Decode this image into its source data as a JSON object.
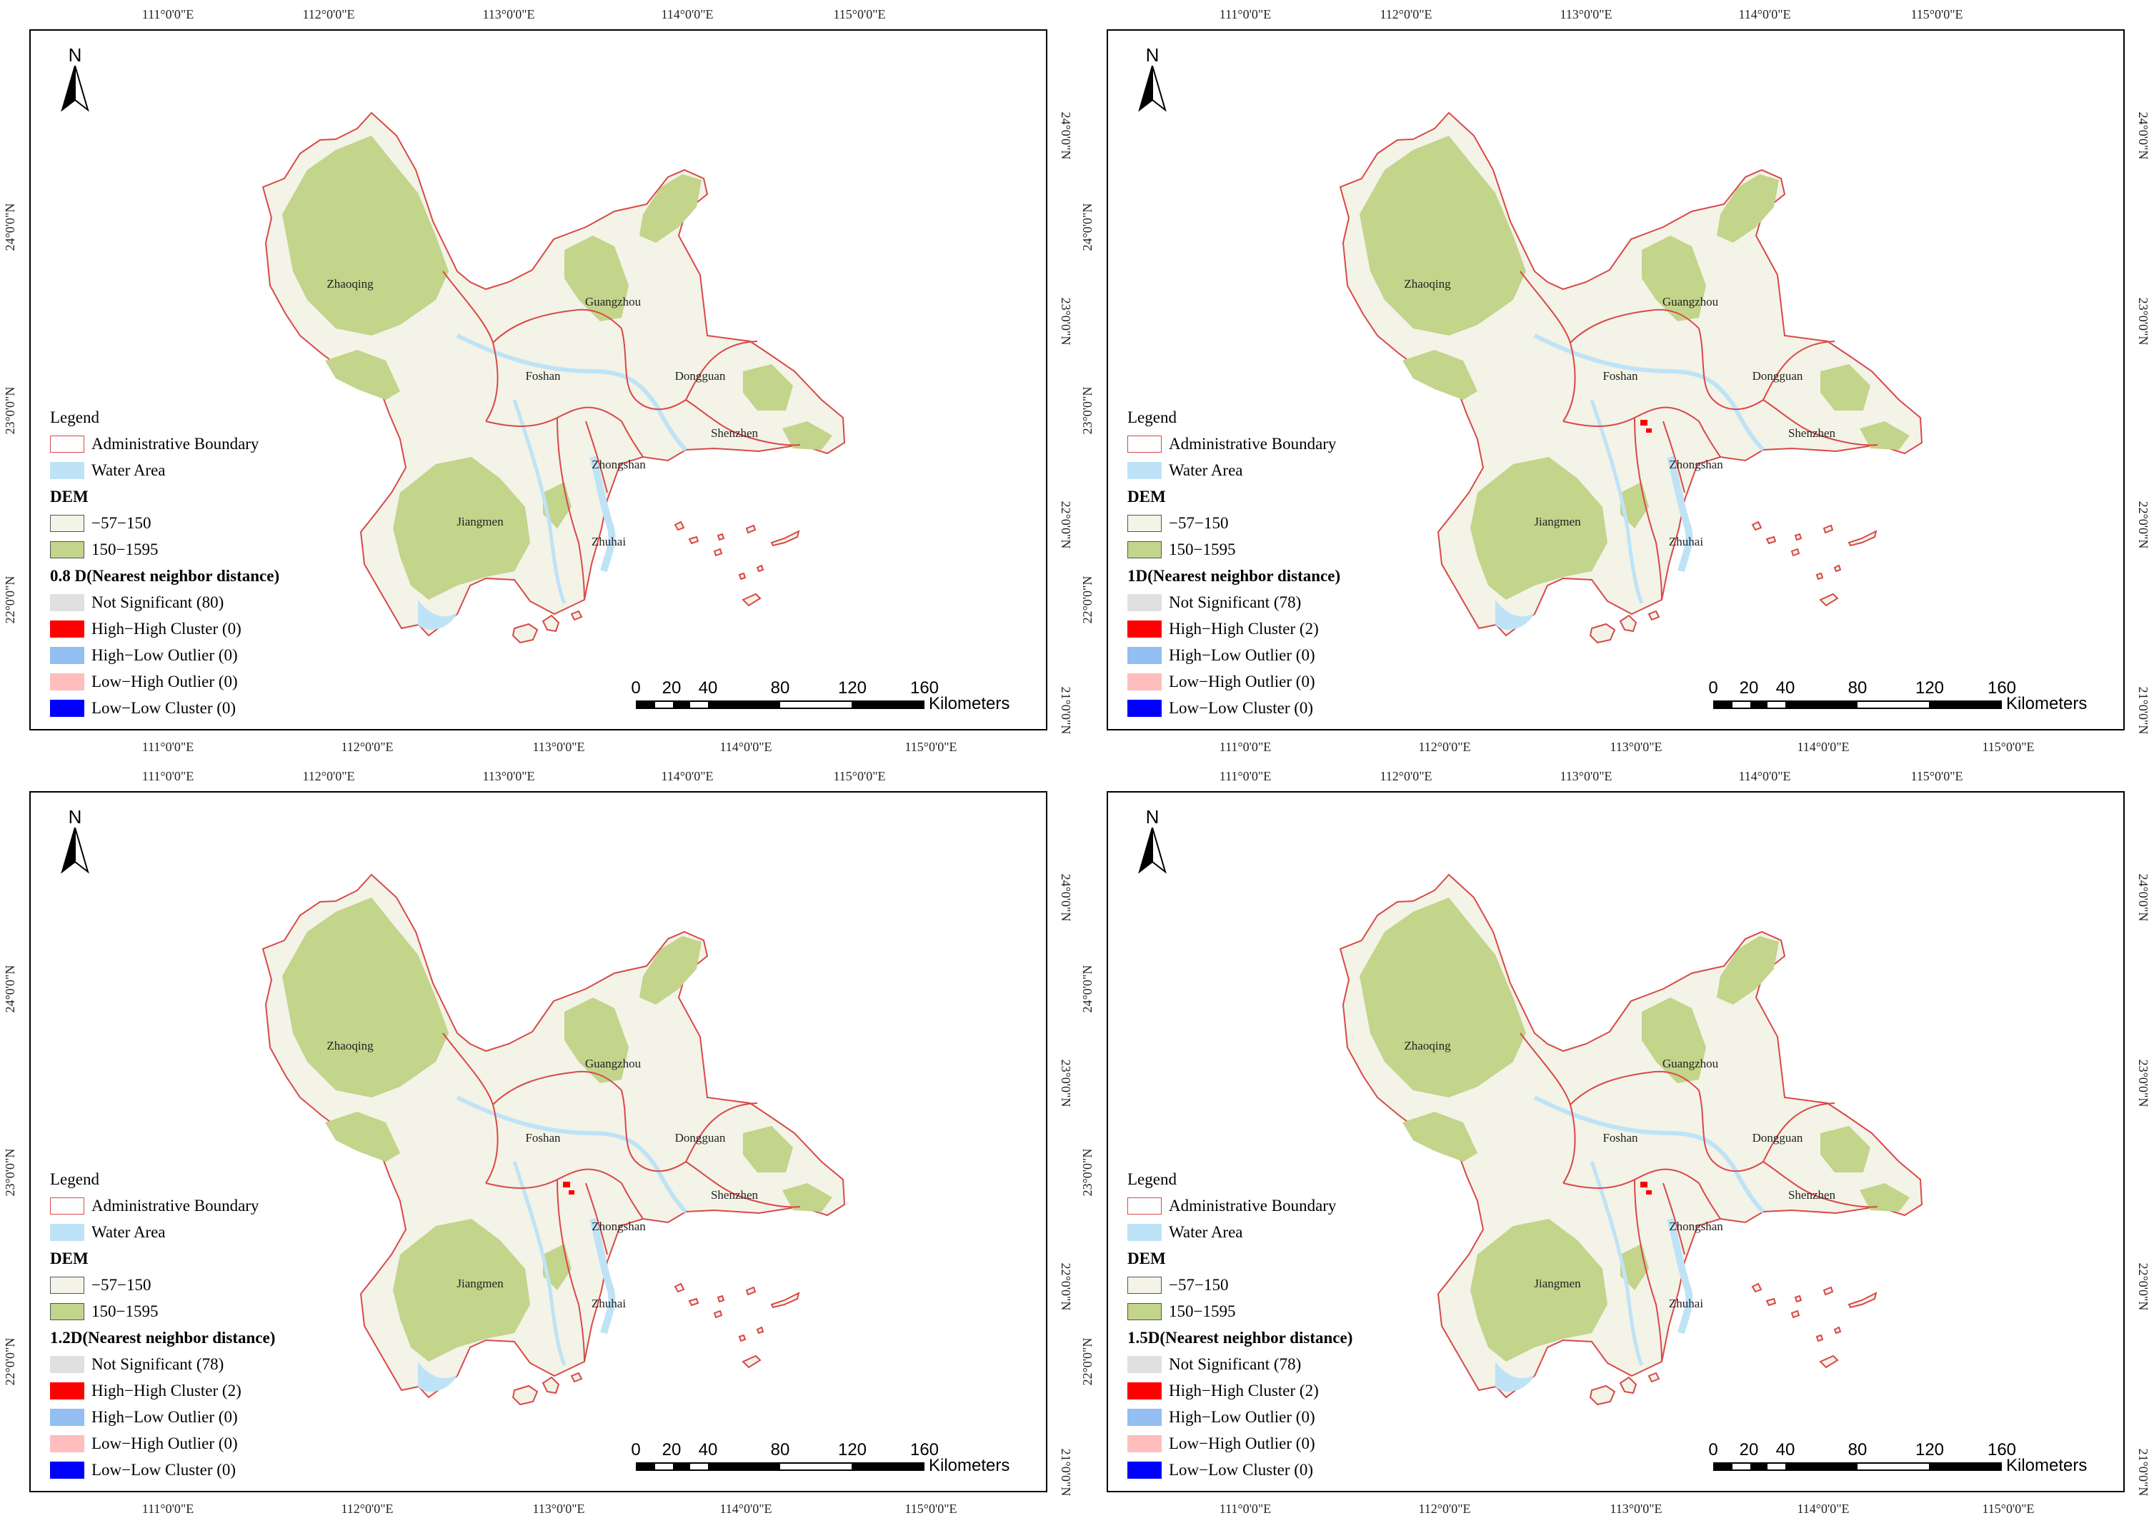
{
  "figure": {
    "lon_ticks": [
      "111°0'0\"E",
      "112°0'0\"E",
      "113°0'0\"E",
      "114°0'0\"E",
      "115°0'0\"E"
    ],
    "lat_ticks": [
      "21°0'0\"N",
      "22°0'0\"N",
      "23°0'0\"N",
      "24°0'0\"N"
    ],
    "cities": [
      "Zhaoqing",
      "Guangzhou",
      "Foshan",
      "Dongguan",
      "Shenzhen",
      "Zhongshan",
      "Jiangmen",
      "Zhuhai"
    ],
    "north_label": "N",
    "scale": {
      "ticks": [
        "0",
        "20",
        "40",
        "80",
        "120",
        "160"
      ],
      "unit": "Kilometers"
    },
    "colors": {
      "land": "#f3f3e7",
      "highland": "#c3d48b",
      "water": "#bfe3f6",
      "boundary": "#d94848",
      "not_significant": "#e0e0e0",
      "high_high": "#ff0000",
      "high_low": "#92bef2",
      "low_high": "#ffbdbd",
      "low_low": "#0000ff"
    }
  },
  "legend_common": {
    "title": "Legend",
    "admin_boundary": "Administrative Boundary",
    "water_area": "Water Area",
    "dem_title": "DEM",
    "dem_low": "−57−150",
    "dem_high": "150−1595"
  },
  "panels": [
    {
      "title": "0.8 D(Nearest neighbor distance)",
      "not_significant": "Not Significant (80)",
      "high_high": "High−High Cluster (0)",
      "high_low": "High−Low Outlier (0)",
      "low_high": "Low−High Outlier (0)",
      "low_low": "Low−Low Cluster (0)",
      "hotspots": 0
    },
    {
      "title": "1D(Nearest neighbor distance)",
      "not_significant": "Not Significant (78)",
      "high_high": "High−High Cluster (2)",
      "high_low": "High−Low Outlier (0)",
      "low_high": "Low−High Outlier (0)",
      "low_low": "Low−Low Cluster (0)",
      "hotspots": 2
    },
    {
      "title": "1.2D(Nearest neighbor distance)",
      "not_significant": "Not Significant (78)",
      "high_high": "High−High Cluster (2)",
      "high_low": "High−Low Outlier (0)",
      "low_high": "Low−High Outlier (0)",
      "low_low": "Low−Low Cluster (0)",
      "hotspots": 2
    },
    {
      "title": "1.5D(Nearest neighbor distance)",
      "not_significant": "Not Significant (78)",
      "high_high": "High−High Cluster (2)",
      "high_low": "High−Low Outlier (0)",
      "low_high": "Low−High Outlier (0)",
      "low_low": "Low−Low Cluster (0)",
      "hotspots": 2
    }
  ]
}
